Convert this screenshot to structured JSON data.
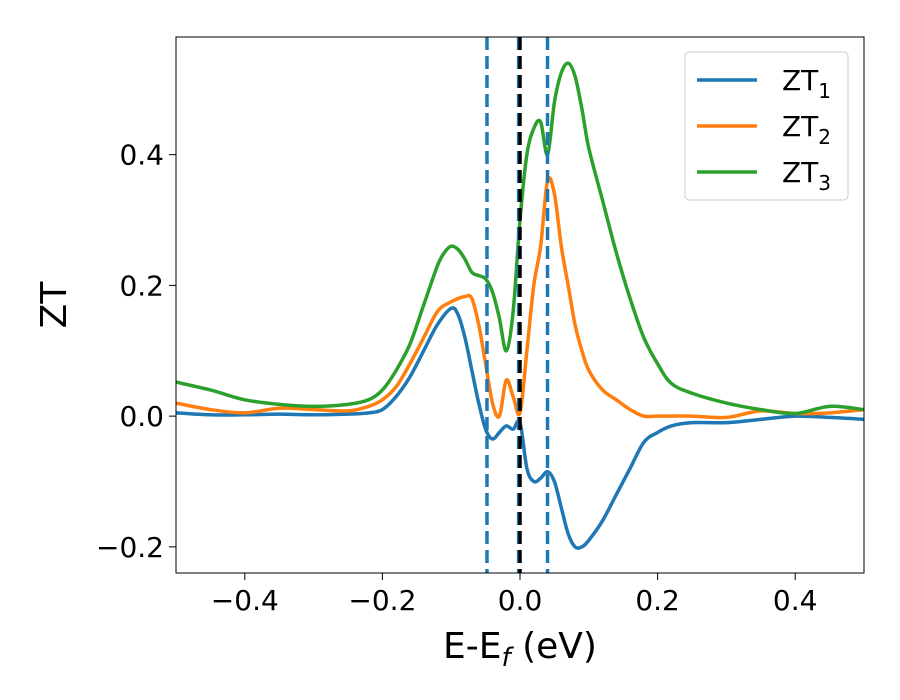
{
  "chart_data": {
    "type": "line",
    "xlabel": "E-E",
    "xlabel_sub": "f",
    "xlabel_unit": " (eV)",
    "ylabel": "ZT",
    "xlim": [
      -0.5,
      0.5
    ],
    "ylim": [
      -0.24,
      0.58
    ],
    "grid": false,
    "legend_position": "top-right",
    "x_ticks": [
      -0.4,
      -0.2,
      0.0,
      0.2,
      0.4
    ],
    "x_tick_labels": [
      "−0.4",
      "−0.2",
      "0.0",
      "0.2",
      "0.4"
    ],
    "y_ticks": [
      -0.2,
      0.0,
      0.2,
      0.4
    ],
    "y_tick_labels": [
      "−0.2",
      "0.0",
      "0.2",
      "0.4"
    ],
    "vertical_lines": [
      {
        "x": -0.048,
        "style": "dashed",
        "color": "#1f77b4"
      },
      {
        "x": -0.002,
        "style": "dashed",
        "color": "#1f77b4"
      },
      {
        "x": 0.0,
        "style": "dashed",
        "color": "#000000"
      },
      {
        "x": 0.04,
        "style": "dashed",
        "color": "#1f77b4"
      }
    ],
    "series": [
      {
        "name": "ZT",
        "name_sub": "1",
        "color": "#1f77b4",
        "x": [
          -0.5,
          -0.45,
          -0.4,
          -0.35,
          -0.3,
          -0.25,
          -0.22,
          -0.2,
          -0.18,
          -0.16,
          -0.14,
          -0.12,
          -0.1,
          -0.09,
          -0.08,
          -0.07,
          -0.06,
          -0.05,
          -0.04,
          -0.03,
          -0.02,
          -0.01,
          0.0,
          0.01,
          0.02,
          0.03,
          0.04,
          0.05,
          0.06,
          0.07,
          0.08,
          0.09,
          0.1,
          0.12,
          0.14,
          0.16,
          0.18,
          0.2,
          0.22,
          0.25,
          0.3,
          0.35,
          0.4,
          0.45,
          0.5
        ],
        "y": [
          0.005,
          0.002,
          0.002,
          0.003,
          0.002,
          0.003,
          0.005,
          0.01,
          0.03,
          0.06,
          0.1,
          0.14,
          0.165,
          0.155,
          0.12,
          0.07,
          0.02,
          -0.02,
          -0.035,
          -0.025,
          -0.015,
          -0.02,
          -0.01,
          -0.08,
          -0.1,
          -0.095,
          -0.085,
          -0.1,
          -0.14,
          -0.18,
          -0.2,
          -0.2,
          -0.19,
          -0.16,
          -0.12,
          -0.08,
          -0.04,
          -0.025,
          -0.015,
          -0.01,
          -0.01,
          -0.005,
          0.0,
          -0.002,
          -0.005
        ]
      },
      {
        "name": "ZT",
        "name_sub": "2",
        "color": "#ff7f0e",
        "x": [
          -0.5,
          -0.45,
          -0.4,
          -0.35,
          -0.3,
          -0.25,
          -0.22,
          -0.2,
          -0.18,
          -0.16,
          -0.14,
          -0.12,
          -0.1,
          -0.08,
          -0.07,
          -0.06,
          -0.05,
          -0.04,
          -0.03,
          -0.02,
          -0.01,
          0.0,
          0.01,
          0.02,
          0.03,
          0.04,
          0.05,
          0.06,
          0.07,
          0.08,
          0.09,
          0.1,
          0.12,
          0.14,
          0.16,
          0.18,
          0.2,
          0.25,
          0.3,
          0.35,
          0.4,
          0.45,
          0.5
        ],
        "y": [
          0.02,
          0.01,
          0.005,
          0.012,
          0.01,
          0.008,
          0.015,
          0.025,
          0.045,
          0.08,
          0.12,
          0.16,
          0.175,
          0.183,
          0.18,
          0.14,
          0.08,
          0.02,
          0.0,
          0.055,
          0.03,
          0.005,
          0.1,
          0.2,
          0.26,
          0.36,
          0.34,
          0.26,
          0.2,
          0.14,
          0.1,
          0.07,
          0.04,
          0.025,
          0.01,
          0.0,
          0.0,
          0.0,
          -0.002,
          0.008,
          0.004,
          0.005,
          0.01
        ]
      },
      {
        "name": "ZT",
        "name_sub": "3",
        "color": "#2ca02c",
        "x": [
          -0.5,
          -0.45,
          -0.4,
          -0.35,
          -0.3,
          -0.25,
          -0.22,
          -0.2,
          -0.18,
          -0.16,
          -0.14,
          -0.12,
          -0.11,
          -0.1,
          -0.09,
          -0.08,
          -0.07,
          -0.06,
          -0.05,
          -0.04,
          -0.03,
          -0.02,
          -0.01,
          0.0,
          0.01,
          0.02,
          0.03,
          0.04,
          0.05,
          0.06,
          0.07,
          0.08,
          0.09,
          0.1,
          0.12,
          0.14,
          0.16,
          0.18,
          0.2,
          0.22,
          0.25,
          0.3,
          0.35,
          0.4,
          0.45,
          0.5
        ],
        "y": [
          0.052,
          0.04,
          0.025,
          0.018,
          0.015,
          0.018,
          0.025,
          0.04,
          0.07,
          0.11,
          0.17,
          0.23,
          0.25,
          0.26,
          0.255,
          0.24,
          0.22,
          0.215,
          0.21,
          0.19,
          0.15,
          0.1,
          0.16,
          0.3,
          0.4,
          0.44,
          0.45,
          0.4,
          0.48,
          0.525,
          0.54,
          0.52,
          0.47,
          0.41,
          0.33,
          0.25,
          0.18,
          0.12,
          0.08,
          0.05,
          0.035,
          0.02,
          0.01,
          0.004,
          0.015,
          0.01
        ]
      }
    ]
  }
}
